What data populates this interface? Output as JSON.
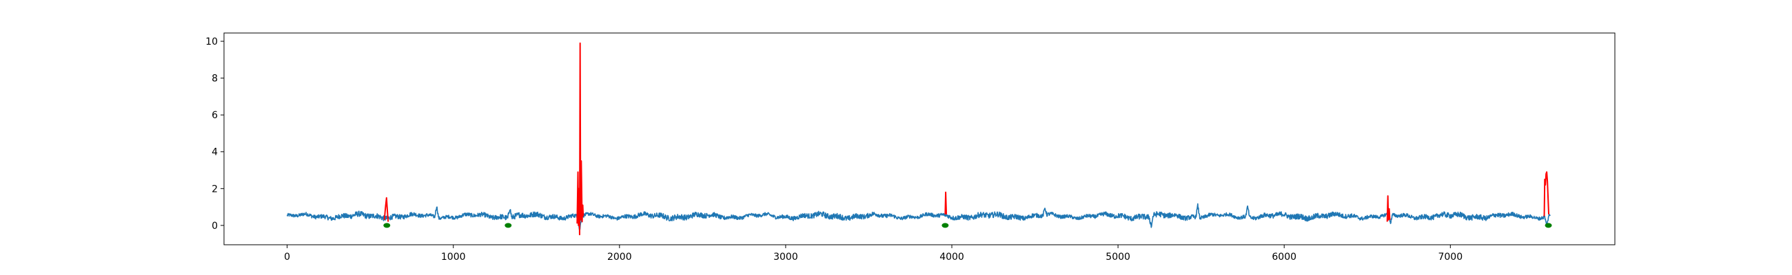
{
  "chart_data": {
    "type": "line",
    "title": "",
    "xlabel": "",
    "ylabel": "",
    "xlim": [
      -380,
      7990
    ],
    "ylim": [
      -1.05,
      10.45
    ],
    "x_ticks": [
      0,
      1000,
      2000,
      3000,
      4000,
      5000,
      6000,
      7000
    ],
    "y_ticks": [
      0,
      2,
      4,
      6,
      8,
      10
    ],
    "grid": false,
    "legend": "none",
    "series": [
      {
        "role": "signal",
        "color": "#1f77b4",
        "x_range": [
          0,
          7600
        ],
        "baseline": 0.5,
        "noise_amplitude": 0.15,
        "local_peaks": [
          [
            900,
            1.3
          ],
          [
            1340,
            1.2
          ],
          [
            5480,
            1.3
          ],
          [
            5780,
            1.2
          ],
          [
            4560,
            1.0
          ]
        ],
        "local_dips": [
          [
            5200,
            -0.2
          ],
          [
            6640,
            -0.1
          ],
          [
            7580,
            -0.2
          ],
          [
            1760,
            -0.5
          ]
        ]
      },
      {
        "role": "anomaly",
        "color": "#ff0000",
        "segments": [
          [
            [
              585,
              0.3
            ],
            [
              592,
              1.0
            ],
            [
              598,
              1.5
            ],
            [
              603,
              0.8
            ],
            [
              608,
              0.2
            ]
          ],
          [
            [
              1745,
              0.1
            ],
            [
              1750,
              2.9
            ],
            [
              1753,
              0.0
            ],
            [
              1757,
              2.0
            ],
            [
              1760,
              -0.5
            ],
            [
              1763,
              9.9
            ],
            [
              1766,
              0.3
            ],
            [
              1770,
              3.5
            ],
            [
              1775,
              0.2
            ],
            [
              1779,
              1.1
            ],
            [
              1782,
              0.5
            ]
          ],
          [
            [
              3960,
              0.6
            ],
            [
              3963,
              1.8
            ],
            [
              3967,
              0.6
            ]
          ],
          [
            [
              6620,
              0.2
            ],
            [
              6624,
              1.6
            ],
            [
              6627,
              0.3
            ],
            [
              6632,
              0.9
            ],
            [
              6636,
              0.3
            ]
          ],
          [
            [
              7565,
              0.5
            ],
            [
              7568,
              2.5
            ],
            [
              7572,
              2.2
            ],
            [
              7576,
              2.8
            ],
            [
              7580,
              2.9
            ],
            [
              7584,
              2.4
            ],
            [
              7588,
              1.5
            ],
            [
              7592,
              0.6
            ]
          ]
        ]
      },
      {
        "role": "marker",
        "color": "#008000",
        "points": [
          [
            600,
            0.0
          ],
          [
            1330,
            0.0
          ],
          [
            3960,
            0.0
          ],
          [
            7590,
            0.0
          ]
        ]
      }
    ]
  }
}
